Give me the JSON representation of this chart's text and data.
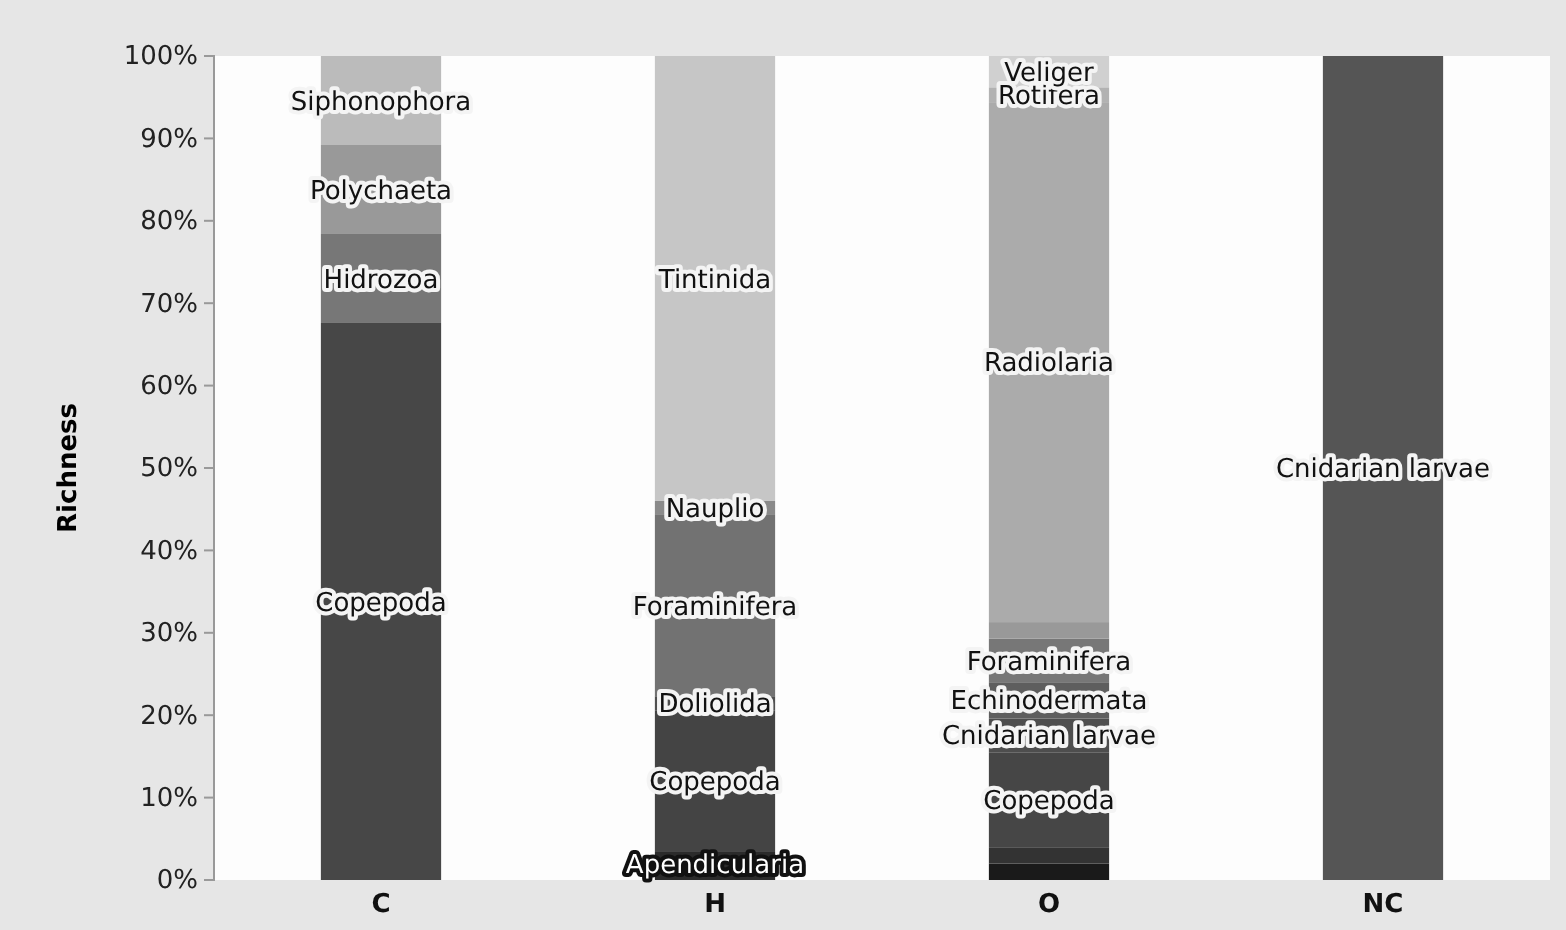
{
  "chart_data": {
    "type": "bar",
    "stacked": true,
    "ylabel": "Richness",
    "categories": [
      "C",
      "H",
      "O",
      "NC"
    ],
    "ylim": [
      0,
      100
    ],
    "yticks": [
      {
        "value": 0,
        "label": "0%"
      },
      {
        "value": 10,
        "label": "10%"
      },
      {
        "value": 20,
        "label": "20%"
      },
      {
        "value": 30,
        "label": "30%"
      },
      {
        "value": 40,
        "label": "40%"
      },
      {
        "value": 50,
        "label": "50%"
      },
      {
        "value": 60,
        "label": "60%"
      },
      {
        "value": 70,
        "label": "70%"
      },
      {
        "value": 80,
        "label": "80%"
      },
      {
        "value": 90,
        "label": "90%"
      },
      {
        "value": 100,
        "label": "100%"
      }
    ],
    "grid": false,
    "series": [
      {
        "values": [
          67.6,
          3.4,
          2.0,
          100
        ],
        "colors": [
          "#474747",
          "#2b2b2b",
          "#1a1a1a",
          "#555555"
        ],
        "value_labels": [
          "Copepoda",
          "Apendicularia",
          null,
          "Cnidarian larvae"
        ]
      },
      {
        "values": [
          10.8,
          17.2,
          1.9,
          null
        ],
        "colors": [
          "#777777",
          "#444444",
          "#333333",
          null
        ],
        "value_labels": [
          "Hidrozoa",
          "Copepoda",
          null,
          null
        ]
      },
      {
        "values": [
          10.8,
          1.7,
          11.6,
          null
        ],
        "colors": [
          "#999999",
          "#4f4f4f",
          "#464646",
          null
        ],
        "value_labels": [
          "Polychaeta",
          "Doliolida",
          "Copepoda",
          null
        ]
      },
      {
        "values": [
          10.8,
          22.0,
          4.1,
          null
        ],
        "colors": [
          "#bbbbbb",
          "#727272",
          "#4e4e4e",
          null
        ],
        "value_labels": [
          "Siphonophora",
          "Foraminifera",
          "Cnidarian larvae",
          null
        ]
      },
      {
        "values": [
          null,
          1.7,
          4.4,
          null
        ],
        "colors": [
          null,
          "#8a8a8a",
          "#5e5e5e",
          null
        ],
        "value_labels": [
          null,
          "Nauplio",
          "Echinodermata",
          null
        ]
      },
      {
        "values": [
          null,
          54.0,
          5.3,
          null
        ],
        "colors": [
          null,
          "#c6c6c6",
          "#777777",
          null
        ],
        "value_labels": [
          null,
          "Tintinida",
          "Foraminifera",
          null
        ]
      },
      {
        "values": [
          null,
          null,
          2.0,
          null
        ],
        "colors": [
          null,
          null,
          "#999999",
          null
        ],
        "value_labels": [
          null,
          null,
          null,
          null
        ]
      },
      {
        "values": [
          null,
          null,
          63.1,
          null
        ],
        "colors": [
          null,
          null,
          "#ababab",
          null
        ],
        "value_labels": [
          null,
          null,
          "Radiolaria",
          null
        ]
      },
      {
        "values": [
          null,
          null,
          1.8,
          null
        ],
        "colors": [
          null,
          null,
          "#b2b2b2",
          null
        ],
        "value_labels": [
          null,
          null,
          "Rotifera",
          null
        ]
      },
      {
        "values": [
          null,
          null,
          3.8,
          null
        ],
        "colors": [
          null,
          null,
          "#d0d0d0",
          null
        ],
        "value_labels": [
          null,
          null,
          "Veliger",
          null
        ]
      }
    ]
  }
}
